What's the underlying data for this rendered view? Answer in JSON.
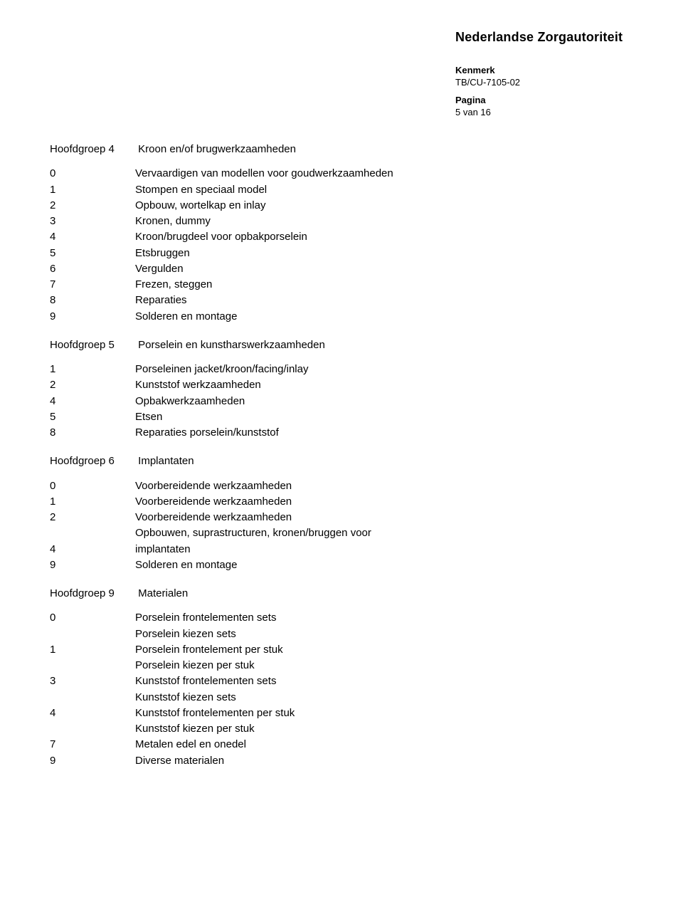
{
  "header": {
    "org_name": "Nederlandse Zorgautoriteit",
    "kenmerk_label": "Kenmerk",
    "kenmerk_value": "TB/CU-7105-02",
    "pagina_label": "Pagina",
    "pagina_value": "5 van 16"
  },
  "groups": [
    {
      "num": "Hoofdgroep 4",
      "title": "Kroon en/of brugwerkzaamheden",
      "items": [
        {
          "n": "0",
          "label": "Vervaardigen van modellen voor goudwerkzaamheden"
        },
        {
          "n": "1",
          "label": "Stompen en speciaal model"
        },
        {
          "n": "2",
          "label": "Opbouw, wortelkap en inlay"
        },
        {
          "n": "3",
          "label": "Kronen, dummy"
        },
        {
          "n": "4",
          "label": "Kroon/brugdeel voor opbakporselein"
        },
        {
          "n": "5",
          "label": "Etsbruggen"
        },
        {
          "n": "6",
          "label": "Vergulden"
        },
        {
          "n": "7",
          "label": "Frezen, steggen"
        },
        {
          "n": "8",
          "label": "Reparaties"
        },
        {
          "n": "9",
          "label": "Solderen en montage"
        }
      ]
    },
    {
      "num": "Hoofdgroep 5",
      "title": "Porselein en kunstharswerkzaamheden",
      "items": [
        {
          "n": "1",
          "label": "Porseleinen jacket/kroon/facing/inlay"
        },
        {
          "n": "2",
          "label": "Kunststof werkzaamheden"
        },
        {
          "n": "4",
          "label": "Opbakwerkzaamheden"
        },
        {
          "n": "5",
          "label": "Etsen"
        },
        {
          "n": "8",
          "label": "Reparaties porselein/kunststof"
        }
      ]
    },
    {
      "num": "Hoofdgroep 6",
      "title": "Implantaten",
      "items": [
        {
          "n": "0",
          "label": "Voorbereidende werkzaamheden"
        },
        {
          "n": "1",
          "label": "Voorbereidende werkzaamheden"
        },
        {
          "n": "2",
          "label": "Voorbereidende werkzaamheden"
        },
        {
          "n": "",
          "label": "Opbouwen, suprastructuren, kronen/bruggen voor"
        },
        {
          "n": "4",
          "label": "implantaten"
        },
        {
          "n": "9",
          "label": "Solderen en montage"
        }
      ]
    },
    {
      "num": "Hoofdgroep 9",
      "title": "Materialen",
      "items": [
        {
          "n": "0",
          "label": "Porselein frontelementen sets"
        },
        {
          "n": "",
          "label": "Porselein kiezen sets"
        },
        {
          "n": "1",
          "label": "Porselein frontelement per stuk"
        },
        {
          "n": "",
          "label": "Porselein kiezen per stuk"
        },
        {
          "n": "3",
          "label": "Kunststof frontelementen sets"
        },
        {
          "n": "",
          "label": "Kunststof kiezen sets"
        },
        {
          "n": "4",
          "label": "Kunststof frontelementen per stuk"
        },
        {
          "n": "",
          "label": "Kunststof kiezen per stuk"
        },
        {
          "n": "7",
          "label": "Metalen edel en onedel"
        },
        {
          "n": "9",
          "label": "Diverse materialen"
        }
      ]
    }
  ]
}
